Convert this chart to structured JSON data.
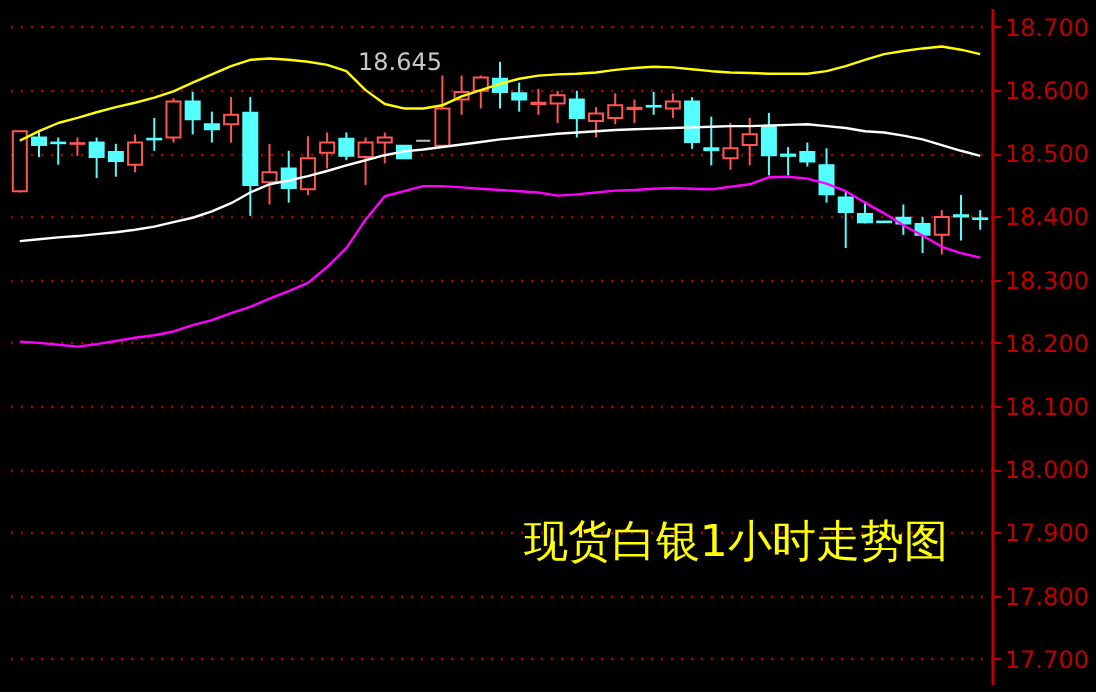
{
  "chart_data": {
    "type": "candlestick",
    "title": "现货白银1小时走势图",
    "categories": [
      null,
      null,
      null,
      null,
      null,
      null,
      null,
      null,
      null,
      null,
      null,
      null,
      null,
      null,
      null,
      null,
      null,
      null,
      null,
      null,
      null,
      null,
      null,
      null,
      null,
      null,
      null,
      null,
      null,
      null,
      null,
      null,
      null,
      null,
      null,
      null,
      null,
      null,
      null,
      null,
      null,
      null,
      null,
      null,
      null,
      null,
      null,
      null,
      null,
      null,
      null
    ],
    "ohlc": [
      [
        18.44,
        18.536,
        18.438,
        18.535
      ],
      [
        18.525,
        18.537,
        18.494,
        18.513
      ],
      [
        18.517,
        18.525,
        18.482,
        18.516
      ],
      [
        18.515,
        18.525,
        18.496,
        18.516
      ],
      [
        18.517,
        18.525,
        18.461,
        18.494
      ],
      [
        18.502,
        18.515,
        18.463,
        18.488
      ],
      [
        18.482,
        18.53,
        18.47,
        18.517
      ],
      [
        18.523,
        18.556,
        18.504,
        18.522
      ],
      [
        18.525,
        18.587,
        18.517,
        18.582
      ],
      [
        18.582,
        18.597,
        18.53,
        18.554
      ],
      [
        18.546,
        18.566,
        18.517,
        18.538
      ],
      [
        18.546,
        18.589,
        18.517,
        18.561
      ],
      [
        18.564,
        18.589,
        18.401,
        18.45
      ],
      [
        18.454,
        18.515,
        18.419,
        18.47
      ],
      [
        18.476,
        18.504,
        18.422,
        18.445
      ],
      [
        18.443,
        18.527,
        18.434,
        18.492
      ],
      [
        18.501,
        18.533,
        18.476,
        18.517
      ],
      [
        18.523,
        18.533,
        18.489,
        18.496
      ],
      [
        18.494,
        18.525,
        18.45,
        18.517
      ],
      [
        18.517,
        18.533,
        18.484,
        18.525
      ],
      [
        18.512,
        18.512,
        18.492,
        18.492
      ],
      [
        18.52,
        18.52,
        18.52,
        18.52
      ],
      [
        18.512,
        18.623,
        18.51,
        18.571
      ],
      [
        18.585,
        18.623,
        18.561,
        18.597
      ],
      [
        18.599,
        18.623,
        18.571,
        18.62
      ],
      [
        18.618,
        18.645,
        18.571,
        18.597
      ],
      [
        18.595,
        18.612,
        18.566,
        18.585
      ],
      [
        18.578,
        18.602,
        18.561,
        18.58
      ],
      [
        18.579,
        18.599,
        18.548,
        18.592
      ],
      [
        18.585,
        18.599,
        18.525,
        18.556
      ],
      [
        18.551,
        18.573,
        18.525,
        18.563
      ],
      [
        18.556,
        18.595,
        18.546,
        18.576
      ],
      [
        18.57,
        18.585,
        18.548,
        18.572
      ],
      [
        18.575,
        18.597,
        18.561,
        18.574
      ],
      [
        18.571,
        18.595,
        18.556,
        18.582
      ],
      [
        18.582,
        18.589,
        18.507,
        18.518
      ],
      [
        18.508,
        18.558,
        18.481,
        18.505
      ],
      [
        18.492,
        18.548,
        18.474,
        18.508
      ],
      [
        18.513,
        18.556,
        18.481,
        18.53
      ],
      [
        18.543,
        18.564,
        18.465,
        18.497
      ],
      [
        18.498,
        18.51,
        18.465,
        18.496
      ],
      [
        18.502,
        18.517,
        18.479,
        18.487
      ],
      [
        18.481,
        18.508,
        18.422,
        18.435
      ],
      [
        18.43,
        18.441,
        18.35,
        18.407
      ],
      [
        18.404,
        18.424,
        18.389,
        18.391
      ],
      [
        18.392,
        18.393,
        18.39,
        18.391
      ],
      [
        18.398,
        18.419,
        18.371,
        18.389
      ],
      [
        18.388,
        18.399,
        18.342,
        18.371
      ],
      [
        18.371,
        18.41,
        18.34,
        18.399
      ],
      [
        18.402,
        18.434,
        18.362,
        18.4
      ],
      [
        18.397,
        18.41,
        18.379,
        18.396
      ]
    ],
    "colors": [
      "#ff5555",
      "#54ffff",
      "#54ffff",
      "#ff5555",
      "#54ffff",
      "#54ffff",
      "#ff5555",
      "#54ffff",
      "#ff5555",
      "#54ffff",
      "#54ffff",
      "#ff5555",
      "#54ffff",
      "#ff5555",
      "#54ffff",
      "#ff5555",
      "#ff5555",
      "#54ffff",
      "#ff5555",
      "#ff5555",
      "#54ffff",
      "#c0c0c0",
      "#ff5555",
      "#ff5555",
      "#ff5555",
      "#54ffff",
      "#54ffff",
      "#ff5555",
      "#ff5555",
      "#54ffff",
      "#ff5555",
      "#ff5555",
      "#ff5555",
      "#54ffff",
      "#ff5555",
      "#54ffff",
      "#54ffff",
      "#ff5555",
      "#ff5555",
      "#54ffff",
      "#54ffff",
      "#54ffff",
      "#54ffff",
      "#54ffff",
      "#54ffff",
      "#54ffff",
      "#54ffff",
      "#54ffff",
      "#ff5555",
      "#54ffff",
      "#54ffff"
    ],
    "series": [
      {
        "type": "line",
        "color": "#ffff00",
        "values": [
          18.52,
          18.535,
          18.548,
          18.556,
          18.565,
          18.573,
          18.58,
          18.588,
          18.598,
          18.612,
          18.625,
          18.638,
          18.648,
          18.65,
          18.648,
          18.645,
          18.64,
          18.63,
          18.6,
          18.578,
          18.571,
          18.571,
          18.576,
          18.59,
          18.6,
          18.61,
          18.618,
          18.623,
          18.625,
          18.626,
          18.628,
          18.632,
          18.635,
          18.637,
          18.636,
          18.633,
          18.63,
          18.628,
          18.627,
          18.626,
          18.626,
          18.626,
          18.63,
          18.638,
          18.648,
          18.657,
          18.662,
          18.666,
          18.669,
          18.664,
          18.657
        ]
      },
      {
        "type": "line",
        "color": "#ffffff",
        "values": [
          18.361,
          18.364,
          18.367,
          18.369,
          18.372,
          18.375,
          18.379,
          18.384,
          18.391,
          18.398,
          18.408,
          18.421,
          18.438,
          18.451,
          18.457,
          18.464,
          18.472,
          18.481,
          18.489,
          18.497,
          18.503,
          18.506,
          18.51,
          18.514,
          18.518,
          18.522,
          18.525,
          18.528,
          18.531,
          18.533,
          18.535,
          18.537,
          18.538,
          18.539,
          18.54,
          18.541,
          18.542,
          18.543,
          18.543,
          18.544,
          18.545,
          18.546,
          18.543,
          18.54,
          18.535,
          18.533,
          18.528,
          18.522,
          18.513,
          18.504,
          18.496
        ]
      },
      {
        "type": "line",
        "color": "#ff00ff",
        "values": [
          18.202,
          18.2,
          18.197,
          18.194,
          18.198,
          18.203,
          18.208,
          18.212,
          18.218,
          18.228,
          18.236,
          18.247,
          18.257,
          18.27,
          18.282,
          18.295,
          18.32,
          18.35,
          18.395,
          18.432,
          18.44,
          18.448,
          18.448,
          18.446,
          18.444,
          18.442,
          18.44,
          18.438,
          18.433,
          18.435,
          18.438,
          18.441,
          18.442,
          18.444,
          18.445,
          18.444,
          18.443,
          18.447,
          18.451,
          18.462,
          18.463,
          18.46,
          18.452,
          18.44,
          18.422,
          18.405,
          18.386,
          18.37,
          18.352,
          18.342,
          18.335
        ]
      }
    ],
    "ylim": [
      17.66,
      18.73
    ],
    "yticks": [
      {
        "value": 17.7,
        "label": "17.700"
      },
      {
        "value": 17.8,
        "label": "17.800"
      },
      {
        "value": 17.9,
        "label": "17.900"
      },
      {
        "value": 18.0,
        "label": "18.000"
      },
      {
        "value": 18.1,
        "label": "18.100"
      },
      {
        "value": 18.2,
        "label": "18.200"
      },
      {
        "value": 18.3,
        "label": "18.300"
      },
      {
        "value": 18.4,
        "label": "18.400"
      },
      {
        "value": 18.5,
        "label": "18.500"
      },
      {
        "value": 18.6,
        "label": "18.600"
      },
      {
        "value": 18.7,
        "label": "18.700"
      }
    ],
    "grid": "y",
    "tick_labels": "y",
    "annotations": [
      "18.645"
    ]
  }
}
